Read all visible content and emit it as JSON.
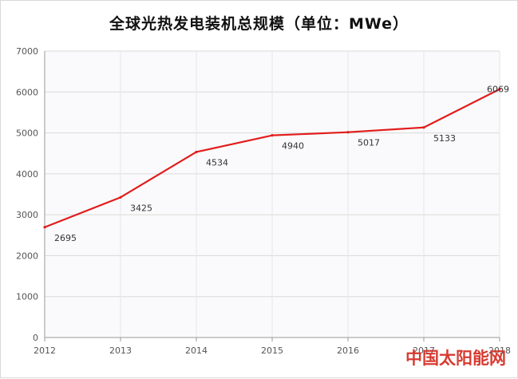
{
  "chart_data": {
    "type": "line",
    "title": "全球光热发电装机总规模（单位：MWe）",
    "xlabel": "",
    "ylabel": "",
    "categories": [
      "2012",
      "2013",
      "2014",
      "2015",
      "2016",
      "2017",
      "2018"
    ],
    "series": [
      {
        "values": [
          2695,
          3425,
          4534,
          4940,
          5017,
          5133,
          6069
        ],
        "color": "#e21d1d"
      }
    ],
    "ylim": [
      0,
      7000
    ],
    "yticks": [
      0,
      1000,
      2000,
      3000,
      4000,
      5000,
      6000,
      7000
    ],
    "grid": true,
    "legend": "none"
  },
  "watermark": "中国太阳能网"
}
